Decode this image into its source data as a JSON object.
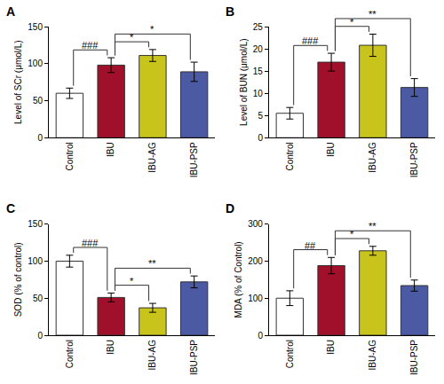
{
  "chart_data": [
    {
      "type": "bar",
      "panel_label": "A",
      "y_label": "Level of SCr (μmol/L)",
      "categories": [
        "Control",
        "IBU",
        "IBU-AG",
        "IBU-PSP"
      ],
      "values": [
        60,
        98,
        111,
        89
      ],
      "errors": [
        7,
        10,
        8,
        13
      ],
      "colors": [
        "#ffffff",
        "#a0102a",
        "#c9c41c",
        "#4b5aa3"
      ],
      "ylim": [
        0,
        150
      ],
      "yticks": [
        0,
        50,
        100,
        150
      ],
      "grid": false,
      "comparisons": [
        {
          "from": "Control",
          "to": "IBU",
          "label": "###"
        },
        {
          "from": "IBU",
          "to": "IBU-AG",
          "label": "*"
        },
        {
          "from": "IBU",
          "to": "IBU-PSP",
          "label": "*"
        }
      ]
    },
    {
      "type": "bar",
      "panel_label": "B",
      "y_label": "Level of BUN (μmol/L)",
      "categories": [
        "Control",
        "IBU",
        "IBU-AG",
        "IBU-PSP"
      ],
      "values": [
        5.5,
        17,
        20.8,
        11.3
      ],
      "errors": [
        1.3,
        2,
        2.5,
        2
      ],
      "colors": [
        "#ffffff",
        "#a0102a",
        "#c9c41c",
        "#4b5aa3"
      ],
      "ylim": [
        0,
        25
      ],
      "yticks": [
        0,
        5,
        10,
        15,
        20,
        25
      ],
      "grid": false,
      "comparisons": [
        {
          "from": "Control",
          "to": "IBU",
          "label": "###"
        },
        {
          "from": "IBU",
          "to": "IBU-AG",
          "label": "*"
        },
        {
          "from": "IBU",
          "to": "IBU-PSP",
          "label": "**"
        }
      ]
    },
    {
      "type": "bar",
      "panel_label": "C",
      "y_label": "SOD (% of control)",
      "categories": [
        "Control",
        "IBU",
        "IBU-AG",
        "IBU-PSP"
      ],
      "values": [
        100,
        51,
        37,
        72
      ],
      "errors": [
        8,
        6,
        6,
        8
      ],
      "colors": [
        "#ffffff",
        "#a0102a",
        "#c9c41c",
        "#4b5aa3"
      ],
      "ylim": [
        0,
        150
      ],
      "yticks": [
        0,
        50,
        100,
        150
      ],
      "grid": false,
      "comparisons": [
        {
          "from": "Control",
          "to": "IBU",
          "label": "###"
        },
        {
          "from": "IBU",
          "to": "IBU-AG",
          "label": "*"
        },
        {
          "from": "IBU",
          "to": "IBU-PSP",
          "label": "**"
        }
      ]
    },
    {
      "type": "bar",
      "panel_label": "D",
      "y_label": "MDA (% of Control)",
      "categories": [
        "Control",
        "IBU",
        "IBU-AG",
        "IBU-PSP"
      ],
      "values": [
        100,
        188,
        228,
        134
      ],
      "errors": [
        20,
        22,
        12,
        15
      ],
      "colors": [
        "#ffffff",
        "#a0102a",
        "#c9c41c",
        "#4b5aa3"
      ],
      "ylim": [
        0,
        300
      ],
      "yticks": [
        0,
        100,
        200,
        300
      ],
      "grid": false,
      "comparisons": [
        {
          "from": "Control",
          "to": "IBU",
          "label": "##"
        },
        {
          "from": "IBU",
          "to": "IBU-AG",
          "label": "*"
        },
        {
          "from": "IBU",
          "to": "IBU-PSP",
          "label": "**"
        }
      ]
    }
  ]
}
